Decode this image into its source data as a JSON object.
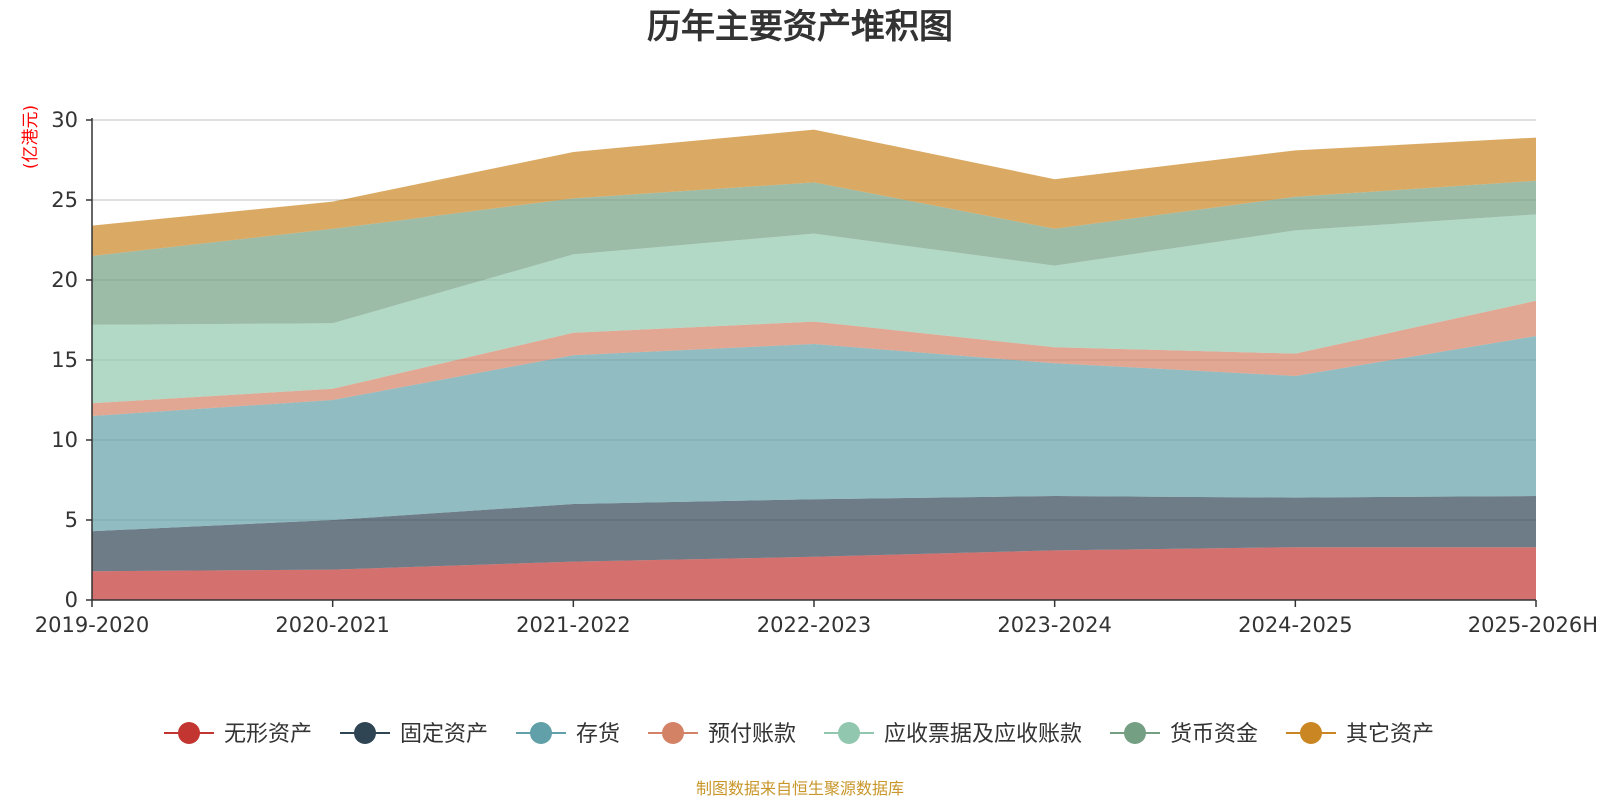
{
  "chart_data": {
    "type": "area",
    "stacked": true,
    "title": "历年主要资产堆积图",
    "unit": "(亿港元)",
    "categories": [
      "2019-2020",
      "2020-2021",
      "2021-2022",
      "2022-2023",
      "2023-2024",
      "2024-2025",
      "2025-2026H"
    ],
    "ylim": [
      0,
      30
    ],
    "yticks": [
      0,
      5,
      10,
      15,
      20,
      25,
      30
    ],
    "grid": true,
    "legend_position": "bottom",
    "series": [
      {
        "name": "无形资产",
        "color": "#c23531",
        "values": [
          1.8,
          1.9,
          2.4,
          2.7,
          3.1,
          3.3,
          3.3
        ]
      },
      {
        "name": "固定资产",
        "color": "#2f4554",
        "values": [
          2.5,
          3.1,
          3.6,
          3.6,
          3.4,
          3.1,
          3.2
        ]
      },
      {
        "name": "存货",
        "color": "#61a0a8",
        "values": [
          7.2,
          7.5,
          9.3,
          9.7,
          8.3,
          7.6,
          10.0
        ]
      },
      {
        "name": "预付账款",
        "color": "#d48265",
        "values": [
          0.8,
          0.7,
          1.4,
          1.4,
          1.0,
          1.4,
          2.2
        ]
      },
      {
        "name": "应收票据及应收账款",
        "color": "#91c7ae",
        "values": [
          4.9,
          4.1,
          4.9,
          5.5,
          5.1,
          7.7,
          5.4
        ]
      },
      {
        "name": "货币资金",
        "color": "#749f83",
        "values": [
          4.3,
          5.9,
          3.5,
          3.2,
          2.3,
          2.1,
          2.1
        ]
      },
      {
        "name": "其它资产",
        "color": "#ca8622",
        "values": [
          1.9,
          1.7,
          2.9,
          3.3,
          3.1,
          2.9,
          2.7
        ]
      }
    ],
    "source_note": "制图数据来自恒生聚源数据库"
  }
}
